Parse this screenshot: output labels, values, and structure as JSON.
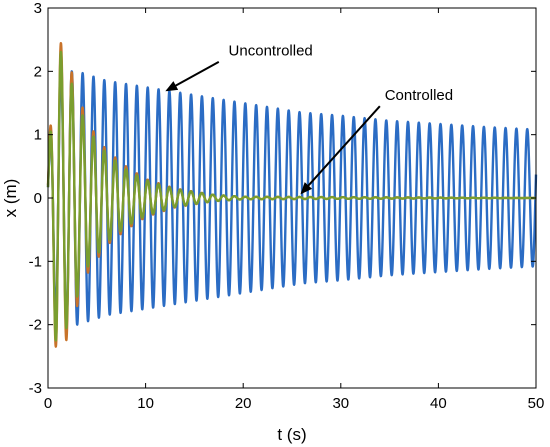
{
  "chart_data": {
    "type": "line",
    "title": "",
    "xlabel": "t (s)",
    "ylabel": "x (m)",
    "xlim": [
      0,
      50
    ],
    "ylim": [
      -3,
      3
    ],
    "xticks": [
      0,
      10,
      20,
      30,
      40,
      50
    ],
    "yticks": [
      -3,
      -2,
      -1,
      0,
      1,
      2,
      3
    ],
    "grid": false,
    "legend": "none",
    "series": [
      {
        "color": "#2b6cc4",
        "style": "sinusoid",
        "frequency_hz": 0.9,
        "envelope": {
          "t": [
            0,
            0.8,
            3,
            6,
            10,
            14,
            18,
            22,
            26,
            30,
            35,
            40,
            45,
            50
          ],
          "amplitude": [
            0.5,
            2.0,
            2.0,
            1.85,
            1.75,
            1.65,
            1.55,
            1.45,
            1.35,
            1.3,
            1.22,
            1.17,
            1.12,
            1.08
          ]
        }
      },
      {
        "color": "#c8732a",
        "style": "decaying-sinusoid",
        "frequency_hz": 0.9,
        "envelope": {
          "t": [
            0,
            0.9,
            2,
            4,
            6,
            8,
            10,
            13,
            17,
            20,
            50
          ],
          "amplitude": [
            0.6,
            2.6,
            2.2,
            1.2,
            0.75,
            0.5,
            0.3,
            0.15,
            0.05,
            0.02,
            0.0
          ]
        }
      },
      {
        "color": "#7a9e2f",
        "style": "decaying-sinusoid",
        "frequency_hz": 0.9,
        "envelope": {
          "t": [
            0,
            0.9,
            2,
            4,
            6,
            8,
            10,
            13,
            17,
            20,
            50
          ],
          "amplitude": [
            0.5,
            2.5,
            2.0,
            1.1,
            0.7,
            0.45,
            0.28,
            0.14,
            0.05,
            0.02,
            0.0
          ]
        }
      }
    ],
    "annotations": [
      {
        "text": "Uncontrolled",
        "text_at": [
          18.5,
          2.25
        ],
        "arrow_from": [
          17.5,
          2.15
        ],
        "arrow_to": [
          12.2,
          1.7
        ]
      },
      {
        "text": "Controlled",
        "text_at": [
          34.5,
          1.55
        ],
        "arrow_from": [
          34.0,
          1.45
        ],
        "arrow_to": [
          26.0,
          0.08
        ]
      }
    ]
  }
}
